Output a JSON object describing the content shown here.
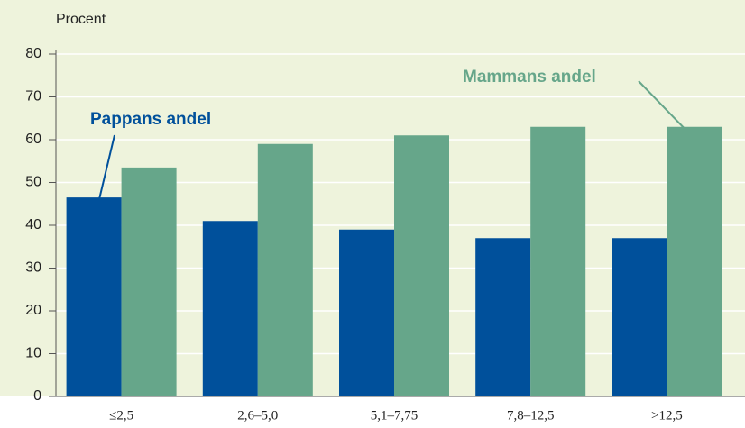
{
  "chart_data": {
    "type": "bar",
    "y_label": "Procent",
    "categories": [
      "≤2,5",
      "2,6–5,0",
      "5,1–7,75",
      "7,8–12,5",
      ">12,5"
    ],
    "series": [
      {
        "name": "Pappans andel",
        "color": "#00509b",
        "values": [
          46.5,
          41,
          39,
          37,
          37
        ]
      },
      {
        "name": "Mammans andel",
        "color": "#66a68a",
        "values": [
          53.5,
          59,
          61,
          63,
          63
        ]
      }
    ],
    "ylim": [
      0,
      80
    ],
    "yticks": [
      0,
      10,
      20,
      30,
      40,
      50,
      60,
      70,
      80
    ],
    "grid": true
  }
}
